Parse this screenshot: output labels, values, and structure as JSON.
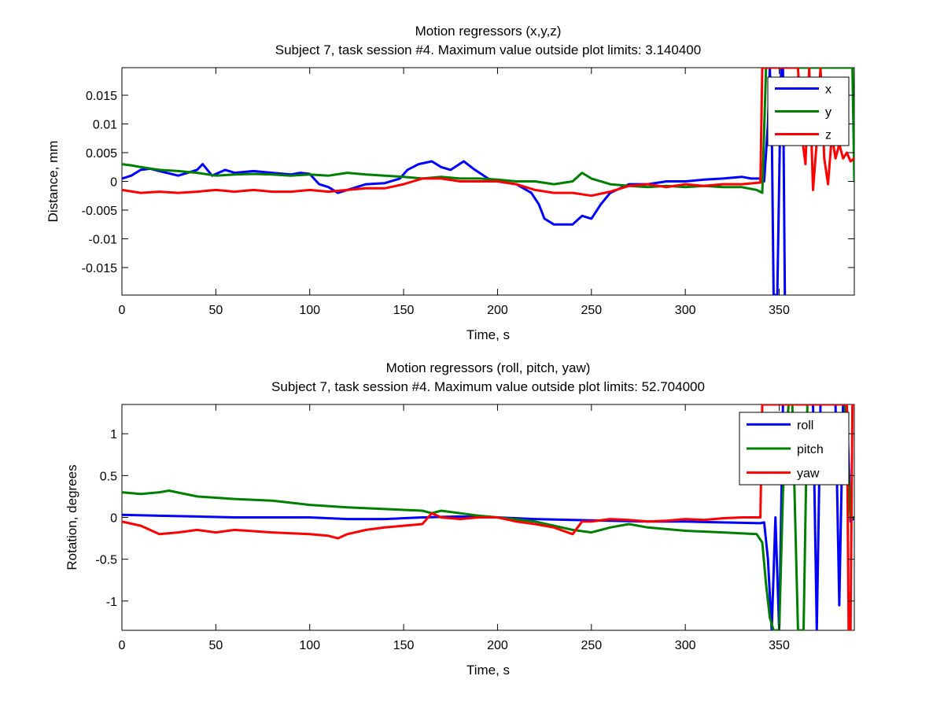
{
  "chart_data": [
    {
      "type": "line",
      "title": "Motion regressors (x,y,z)",
      "subtitle": "Subject 7, task session #4. Maximum value outside plot limits: 3.140400",
      "xlabel": "Time, s",
      "ylabel": "Distance, mm",
      "xlim": [
        0,
        390
      ],
      "ylim": [
        -0.0198,
        0.0198
      ],
      "xticks": [
        0,
        50,
        100,
        150,
        200,
        250,
        300,
        350
      ],
      "xtick_labels": [
        "0",
        "50",
        "100",
        "150",
        "200",
        "250",
        "300",
        "350"
      ],
      "yticks": [
        -0.015,
        -0.01,
        -0.005,
        0,
        0.005,
        0.01,
        0.015
      ],
      "ytick_labels": [
        "-0.015",
        "-0.01",
        "-0.005",
        "0",
        "0.005",
        "0.01",
        "0.015"
      ],
      "grid": false,
      "legend": "top-right",
      "series": [
        {
          "name": "x",
          "color": "#0000ff",
          "x": [
            0,
            5,
            10,
            15,
            20,
            30,
            40,
            43,
            48,
            55,
            60,
            70,
            80,
            90,
            95,
            100,
            105,
            110,
            115,
            120,
            130,
            140,
            148,
            152,
            158,
            165,
            170,
            175,
            182,
            188,
            195,
            200,
            210,
            218,
            222,
            225,
            230,
            240,
            245,
            250,
            255,
            260,
            270,
            280,
            290,
            300,
            310,
            320,
            330,
            335,
            340,
            342,
            344,
            345,
            346,
            347,
            348,
            349,
            350,
            351,
            352,
            353
          ],
          "y": [
            0.0005,
            0.001,
            0.002,
            0.0022,
            0.0018,
            0.001,
            0.002,
            0.003,
            0.001,
            0.002,
            0.0015,
            0.0018,
            0.0015,
            0.0012,
            0.0015,
            0.0013,
            -0.0005,
            -0.001,
            -0.002,
            -0.0015,
            -0.0005,
            -0.0003,
            0.0005,
            0.002,
            0.003,
            0.0035,
            0.0025,
            0.002,
            0.0035,
            0.002,
            0.0005,
            0.0,
            -0.0005,
            -0.002,
            -0.004,
            -0.0065,
            -0.0075,
            -0.0075,
            -0.006,
            -0.0065,
            -0.004,
            -0.002,
            -0.0005,
            -0.0005,
            0.0,
            0.0,
            0.0003,
            0.0005,
            0.0008,
            0.0005,
            0.0005,
            0.0,
            0.01,
            0.0198,
            0.01,
            -0.0198,
            -0.0198,
            -0.0198,
            0.0,
            0.0198,
            0.0198,
            -0.0198
          ]
        },
        {
          "name": "y",
          "color": "#008000",
          "x": [
            0,
            5,
            10,
            20,
            30,
            40,
            50,
            60,
            70,
            80,
            90,
            100,
            110,
            120,
            130,
            140,
            150,
            160,
            170,
            180,
            190,
            200,
            210,
            220,
            230,
            240,
            245,
            250,
            260,
            270,
            280,
            290,
            300,
            310,
            320,
            330,
            338,
            341,
            343,
            345,
            347,
            350,
            355,
            360,
            365,
            370,
            375,
            380,
            385,
            388,
            389,
            390
          ],
          "y": [
            0.003,
            0.0028,
            0.0025,
            0.002,
            0.0018,
            0.0015,
            0.001,
            0.0012,
            0.0013,
            0.0012,
            0.001,
            0.0012,
            0.001,
            0.0015,
            0.0012,
            0.001,
            0.0008,
            0.0005,
            0.0008,
            0.0005,
            0.0005,
            0.0003,
            0.0,
            0.0,
            -0.0005,
            0.0,
            0.0015,
            0.0005,
            -0.0005,
            -0.0008,
            -0.001,
            -0.0008,
            -0.001,
            -0.0008,
            -0.001,
            -0.001,
            -0.0015,
            -0.002,
            0.0198,
            0.0198,
            0.0198,
            0.0198,
            0.0198,
            0.0198,
            0.0198,
            0.0198,
            0.0198,
            0.0198,
            0.0198,
            0.0198,
            0.0198,
            0.0
          ]
        },
        {
          "name": "z",
          "color": "#ff0000",
          "x": [
            0,
            10,
            20,
            30,
            40,
            50,
            60,
            70,
            80,
            90,
            100,
            110,
            120,
            130,
            140,
            150,
            155,
            160,
            170,
            180,
            190,
            200,
            210,
            220,
            230,
            240,
            250,
            260,
            270,
            280,
            290,
            300,
            310,
            320,
            330,
            340,
            341,
            342,
            345,
            350,
            353,
            355,
            358,
            360,
            362,
            364,
            366,
            368,
            370,
            372,
            374,
            376,
            378,
            380,
            382,
            384,
            386,
            388,
            390
          ],
          "y": [
            -0.0015,
            -0.002,
            -0.0018,
            -0.002,
            -0.0018,
            -0.0015,
            -0.0018,
            -0.0015,
            -0.0018,
            -0.0018,
            -0.0015,
            -0.0018,
            -0.0015,
            -0.0012,
            -0.0012,
            -0.0005,
            0.0,
            0.0005,
            0.0005,
            0.0,
            0.0,
            0.0,
            -0.0005,
            -0.0015,
            -0.002,
            -0.002,
            -0.0025,
            -0.0018,
            -0.0008,
            -0.0005,
            -0.001,
            -0.0005,
            -0.0008,
            -0.0005,
            -0.0005,
            -0.0002,
            0.0198,
            0.0198,
            0.0198,
            0.0198,
            0.0198,
            0.0198,
            0.0198,
            0.0198,
            0.008,
            0.003,
            0.0198,
            -0.0015,
            0.007,
            0.0198,
            0.004,
            -0.0005,
            0.008,
            0.004,
            0.0065,
            0.004,
            0.005,
            0.0035,
            0.004
          ]
        }
      ]
    },
    {
      "type": "line",
      "title": "Motion regressors (roll, pitch, yaw)",
      "subtitle": "Subject 7, task session #4. Maximum value outside plot limits: 52.704000",
      "xlabel": "Time, s",
      "ylabel": "Rotation, degrees",
      "xlim": [
        0,
        390
      ],
      "ylim": [
        -1.35,
        1.35
      ],
      "xticks": [
        0,
        50,
        100,
        150,
        200,
        250,
        300,
        350
      ],
      "xtick_labels": [
        "0",
        "50",
        "100",
        "150",
        "200",
        "250",
        "300",
        "350"
      ],
      "yticks": [
        -1,
        -0.5,
        0,
        0.5,
        1
      ],
      "ytick_labels": [
        "-1",
        "-0.5",
        "0",
        "0.5",
        "1"
      ],
      "grid": false,
      "legend": "top-right",
      "series": [
        {
          "name": "roll",
          "color": "#0000ff",
          "x": [
            0,
            20,
            40,
            60,
            80,
            100,
            120,
            140,
            160,
            180,
            200,
            220,
            240,
            260,
            280,
            300,
            320,
            340,
            342,
            344,
            346,
            348,
            350,
            352,
            354,
            356,
            358,
            360,
            362,
            364,
            366,
            368,
            370,
            372,
            374,
            376,
            378,
            380,
            382,
            384,
            386,
            388,
            390
          ],
          "y": [
            0.03,
            0.02,
            0.01,
            0.0,
            0.0,
            0.0,
            -0.02,
            -0.02,
            0.0,
            0.01,
            0.0,
            -0.02,
            -0.03,
            -0.04,
            -0.05,
            -0.05,
            -0.06,
            -0.07,
            -0.06,
            -0.5,
            -1.35,
            0.0,
            -1.35,
            1.35,
            1.35,
            1.35,
            1.35,
            1.35,
            1.35,
            1.35,
            1.35,
            1.35,
            -1.35,
            1.35,
            1.35,
            1.35,
            1.35,
            1.35,
            -1.05,
            1.35,
            1.35,
            -0.05,
            0.0
          ]
        },
        {
          "name": "pitch",
          "color": "#008000",
          "x": [
            0,
            10,
            20,
            25,
            40,
            60,
            80,
            100,
            120,
            140,
            160,
            165,
            170,
            180,
            190,
            200,
            220,
            240,
            250,
            260,
            270,
            280,
            300,
            320,
            338,
            341,
            343,
            345,
            347,
            350,
            352,
            355,
            357,
            360,
            363,
            365,
            368,
            370,
            372,
            375,
            380,
            385,
            388,
            390
          ],
          "y": [
            0.3,
            0.28,
            0.3,
            0.32,
            0.25,
            0.22,
            0.2,
            0.15,
            0.12,
            0.1,
            0.08,
            0.05,
            0.08,
            0.05,
            0.02,
            0.0,
            -0.05,
            -0.15,
            -0.18,
            -0.12,
            -0.08,
            -0.12,
            -0.16,
            -0.18,
            -0.2,
            -0.3,
            -0.8,
            -1.2,
            -1.35,
            -1.35,
            0.3,
            1.35,
            1.35,
            -1.35,
            -1.35,
            1.35,
            1.35,
            1.35,
            1.35,
            1.35,
            1.35,
            1.35,
            0.0,
            0.0
          ]
        },
        {
          "name": "yaw",
          "color": "#ff0000",
          "x": [
            0,
            10,
            20,
            30,
            40,
            50,
            60,
            80,
            100,
            110,
            115,
            120,
            130,
            140,
            150,
            160,
            165,
            170,
            180,
            190,
            200,
            210,
            220,
            230,
            240,
            245,
            250,
            260,
            270,
            280,
            290,
            300,
            310,
            320,
            330,
            340,
            341,
            342,
            345,
            350,
            360,
            370,
            380,
            386,
            387,
            388,
            389,
            390
          ],
          "y": [
            -0.05,
            -0.1,
            -0.2,
            -0.18,
            -0.15,
            -0.18,
            -0.15,
            -0.18,
            -0.2,
            -0.22,
            -0.25,
            -0.2,
            -0.15,
            -0.12,
            -0.1,
            -0.08,
            0.05,
            0.0,
            -0.02,
            0.0,
            0.0,
            -0.05,
            -0.08,
            -0.12,
            -0.2,
            -0.05,
            -0.05,
            -0.02,
            -0.03,
            -0.05,
            -0.04,
            -0.02,
            -0.03,
            -0.01,
            0.0,
            0.0,
            1.35,
            1.35,
            1.35,
            1.35,
            1.35,
            1.35,
            1.35,
            1.35,
            -1.35,
            -1.35,
            1.35,
            1.35
          ]
        }
      ]
    }
  ]
}
